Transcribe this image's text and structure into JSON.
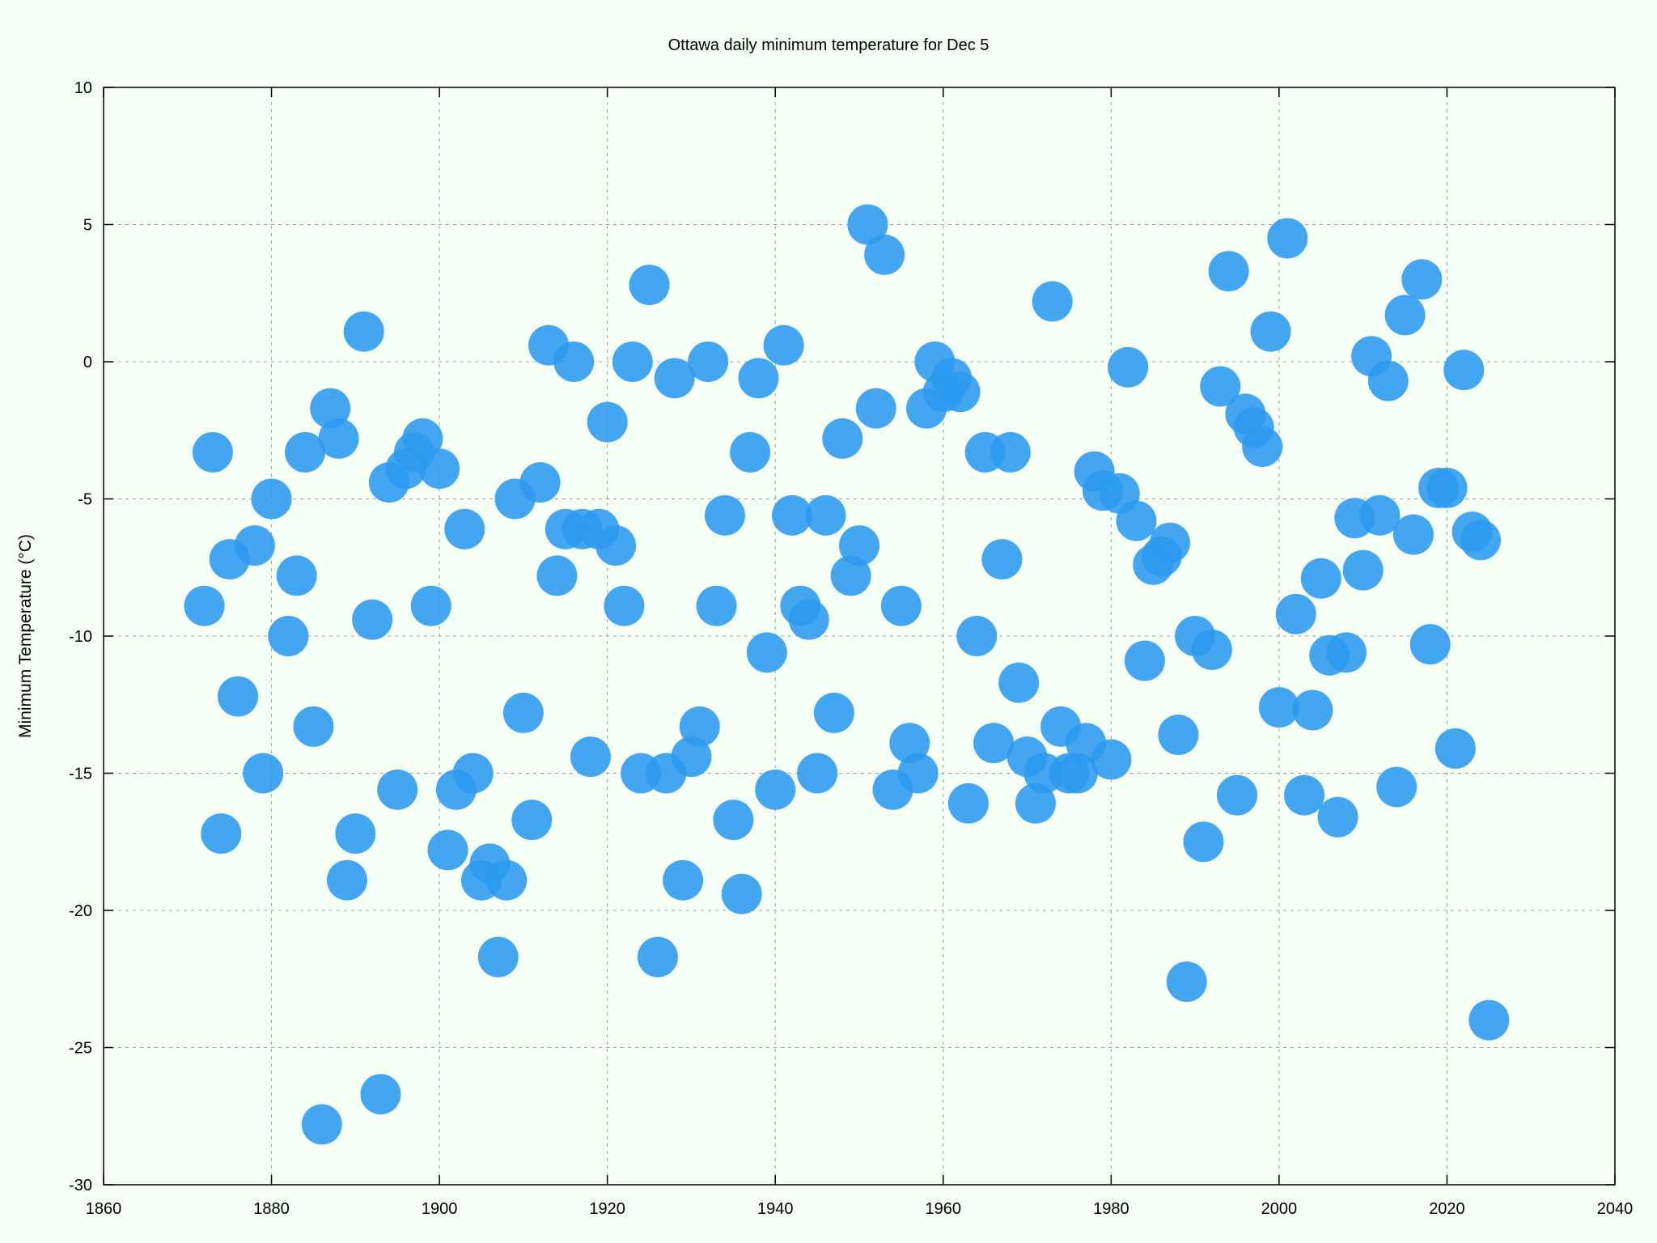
{
  "chart_data": {
    "type": "scatter",
    "title": "Ottawa daily minimum temperature for Dec 5",
    "xlabel": "",
    "ylabel": "Minimum Temperature (°C)",
    "xlim": [
      1860,
      2040
    ],
    "ylim": [
      -30,
      10
    ],
    "xticks": [
      1860,
      1880,
      1900,
      1920,
      1940,
      1960,
      1980,
      2000,
      2020,
      2040
    ],
    "yticks": [
      -30,
      -25,
      -20,
      -15,
      -10,
      -5,
      0,
      5,
      10
    ],
    "grid": true,
    "marker_color": "#2b9af0",
    "background_color": "#f5fff5",
    "series": [
      {
        "points": [
          [
            1872,
            -8.9
          ],
          [
            1873,
            -3.3
          ],
          [
            1874,
            -17.2
          ],
          [
            1875,
            -7.2
          ],
          [
            1876,
            -12.2
          ],
          [
            1878,
            -6.7
          ],
          [
            1879,
            -15.0
          ],
          [
            1880,
            -5.0
          ],
          [
            1882,
            -10.0
          ],
          [
            1883,
            -7.8
          ],
          [
            1884,
            -3.3
          ],
          [
            1885,
            -13.3
          ],
          [
            1886,
            -27.8
          ],
          [
            1887,
            -1.7
          ],
          [
            1888,
            -2.8
          ],
          [
            1889,
            -18.9
          ],
          [
            1890,
            -17.2
          ],
          [
            1891,
            1.1
          ],
          [
            1892,
            -9.4
          ],
          [
            1893,
            -26.7
          ],
          [
            1894,
            -4.4
          ],
          [
            1895,
            -15.6
          ],
          [
            1896,
            -3.9
          ],
          [
            1897,
            -3.3
          ],
          [
            1898,
            -2.8
          ],
          [
            1899,
            -8.9
          ],
          [
            1900,
            -3.9
          ],
          [
            1901,
            -17.8
          ],
          [
            1902,
            -15.6
          ],
          [
            1903,
            -6.1
          ],
          [
            1904,
            -15.0
          ],
          [
            1905,
            -18.9
          ],
          [
            1906,
            -18.3
          ],
          [
            1907,
            -21.7
          ],
          [
            1908,
            -18.9
          ],
          [
            1909,
            -5.0
          ],
          [
            1910,
            -12.8
          ],
          [
            1911,
            -16.7
          ],
          [
            1912,
            -4.4
          ],
          [
            1913,
            0.6
          ],
          [
            1914,
            -7.8
          ],
          [
            1915,
            -6.1
          ],
          [
            1916,
            0.0
          ],
          [
            1917,
            -6.1
          ],
          [
            1918,
            -14.4
          ],
          [
            1919,
            -6.1
          ],
          [
            1920,
            -2.2
          ],
          [
            1921,
            -6.7
          ],
          [
            1922,
            -8.9
          ],
          [
            1923,
            0.0
          ],
          [
            1924,
            -15.0
          ],
          [
            1925,
            2.8
          ],
          [
            1926,
            -21.7
          ],
          [
            1927,
            -15.0
          ],
          [
            1928,
            -0.6
          ],
          [
            1929,
            -18.9
          ],
          [
            1930,
            -14.4
          ],
          [
            1931,
            -13.3
          ],
          [
            1932,
            0.0
          ],
          [
            1933,
            -8.9
          ],
          [
            1934,
            -5.6
          ],
          [
            1935,
            -16.7
          ],
          [
            1936,
            -19.4
          ],
          [
            1937,
            -3.3
          ],
          [
            1938,
            -0.6
          ],
          [
            1939,
            -10.6
          ],
          [
            1940,
            -15.6
          ],
          [
            1941,
            0.6
          ],
          [
            1942,
            -5.6
          ],
          [
            1943,
            -8.9
          ],
          [
            1944,
            -9.4
          ],
          [
            1945,
            -15.0
          ],
          [
            1946,
            -5.6
          ],
          [
            1947,
            -12.8
          ],
          [
            1948,
            -2.8
          ],
          [
            1949,
            -7.8
          ],
          [
            1950,
            -6.7
          ],
          [
            1951,
            5.0
          ],
          [
            1952,
            -1.7
          ],
          [
            1953,
            3.9
          ],
          [
            1954,
            -15.6
          ],
          [
            1955,
            -8.9
          ],
          [
            1956,
            -13.9
          ],
          [
            1957,
            -15.0
          ],
          [
            1958,
            -1.7
          ],
          [
            1959,
            0.0
          ],
          [
            1960,
            -1.1
          ],
          [
            1961,
            -0.6
          ],
          [
            1962,
            -1.1
          ],
          [
            1963,
            -16.1
          ],
          [
            1964,
            -10.0
          ],
          [
            1965,
            -3.3
          ],
          [
            1966,
            -13.9
          ],
          [
            1967,
            -7.2
          ],
          [
            1968,
            -3.3
          ],
          [
            1969,
            -11.7
          ],
          [
            1970,
            -14.4
          ],
          [
            1971,
            -16.1
          ],
          [
            1972,
            -15.0
          ],
          [
            1973,
            2.2
          ],
          [
            1974,
            -13.3
          ],
          [
            1975,
            -15.0
          ],
          [
            1976,
            -15.0
          ],
          [
            1977,
            -13.9
          ],
          [
            1978,
            -4.0
          ],
          [
            1979,
            -4.7
          ],
          [
            1980,
            -14.5
          ],
          [
            1981,
            -4.8
          ],
          [
            1982,
            -0.2
          ],
          [
            1983,
            -5.8
          ],
          [
            1984,
            -10.9
          ],
          [
            1985,
            -7.4
          ],
          [
            1986,
            -7.1
          ],
          [
            1987,
            -6.6
          ],
          [
            1988,
            -13.6
          ],
          [
            1989,
            -22.6
          ],
          [
            1990,
            -10.0
          ],
          [
            1991,
            -17.5
          ],
          [
            1992,
            -10.5
          ],
          [
            1993,
            -0.9
          ],
          [
            1994,
            3.3
          ],
          [
            1995,
            -15.8
          ],
          [
            1996,
            -1.9
          ],
          [
            1997,
            -2.4
          ],
          [
            1998,
            -3.1
          ],
          [
            1999,
            1.1
          ],
          [
            2000,
            -12.6
          ],
          [
            2001,
            4.5
          ],
          [
            2002,
            -9.2
          ],
          [
            2003,
            -15.8
          ],
          [
            2004,
            -12.7
          ],
          [
            2005,
            -7.9
          ],
          [
            2006,
            -10.7
          ],
          [
            2007,
            -16.6
          ],
          [
            2008,
            -10.6
          ],
          [
            2009,
            -5.7
          ],
          [
            2010,
            -7.6
          ],
          [
            2011,
            0.2
          ],
          [
            2012,
            -5.6
          ],
          [
            2013,
            -0.7
          ],
          [
            2014,
            -15.5
          ],
          [
            2015,
            1.7
          ],
          [
            2016,
            -6.3
          ],
          [
            2017,
            3.0
          ],
          [
            2018,
            -10.3
          ],
          [
            2019,
            -4.6
          ],
          [
            2020,
            -4.6
          ],
          [
            2021,
            -14.1
          ],
          [
            2022,
            -0.3
          ],
          [
            2023,
            -6.2
          ],
          [
            2024,
            -6.5
          ],
          [
            2025,
            -24.0
          ]
        ]
      }
    ]
  }
}
